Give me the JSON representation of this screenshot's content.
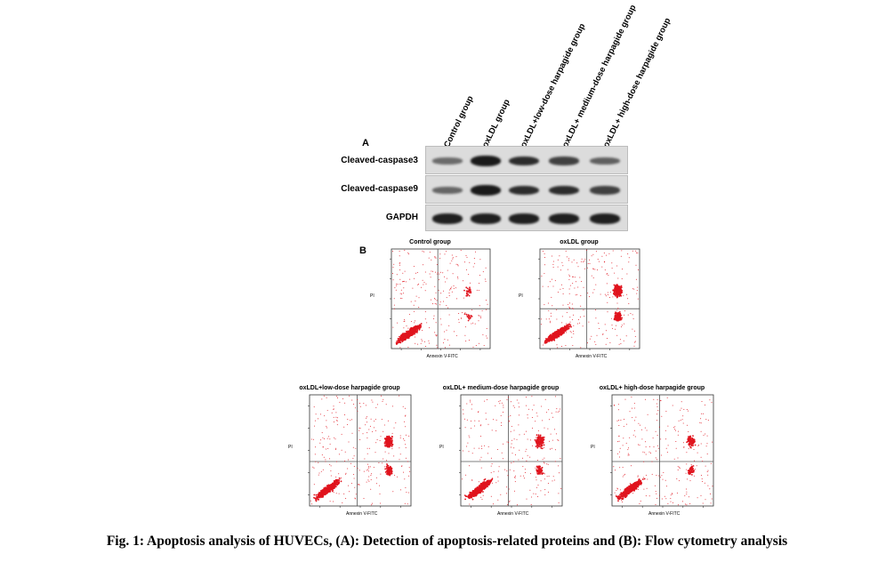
{
  "panel_a": {
    "letter": "A",
    "lanes": [
      "Control group",
      "oxLDL group",
      "oxLDL+low-dose harpagide group",
      "oxLDL+ medium-dose harpagide group",
      "oxLDL+ high-dose harpagide group"
    ],
    "proteins": [
      {
        "name": "Cleaved-caspase3",
        "intensities": [
          0.35,
          1.0,
          0.85,
          0.7,
          0.45
        ]
      },
      {
        "name": "Cleaved-caspase9",
        "intensities": [
          0.4,
          1.0,
          0.85,
          0.85,
          0.7
        ]
      },
      {
        "name": "GAPDH",
        "intensities": [
          0.95,
          0.95,
          0.95,
          0.95,
          0.95
        ]
      }
    ]
  },
  "panel_b": {
    "letter": "B",
    "x_axis_label": "Annexin V-FITC",
    "y_axis_label": "PI",
    "plots": [
      {
        "title": "Control group",
        "apoptotic_level": 0.1
      },
      {
        "title": "oxLDL group",
        "apoptotic_level": 0.9
      },
      {
        "title": "oxLDL+low-dose harpagide group",
        "apoptotic_level": 0.7
      },
      {
        "title": "oxLDL+ medium-dose harpagide group",
        "apoptotic_level": 0.5
      },
      {
        "title": "oxLDL+ high-dose harpagide group",
        "apoptotic_level": 0.35
      }
    ],
    "colors": {
      "dots": "#e0141e",
      "quadrant_line": "#555555"
    }
  },
  "caption": "Fig. 1: Apoptosis analysis of HUVECs, (A): Detection of apoptosis-related proteins and (B): Flow cytometry analysis"
}
